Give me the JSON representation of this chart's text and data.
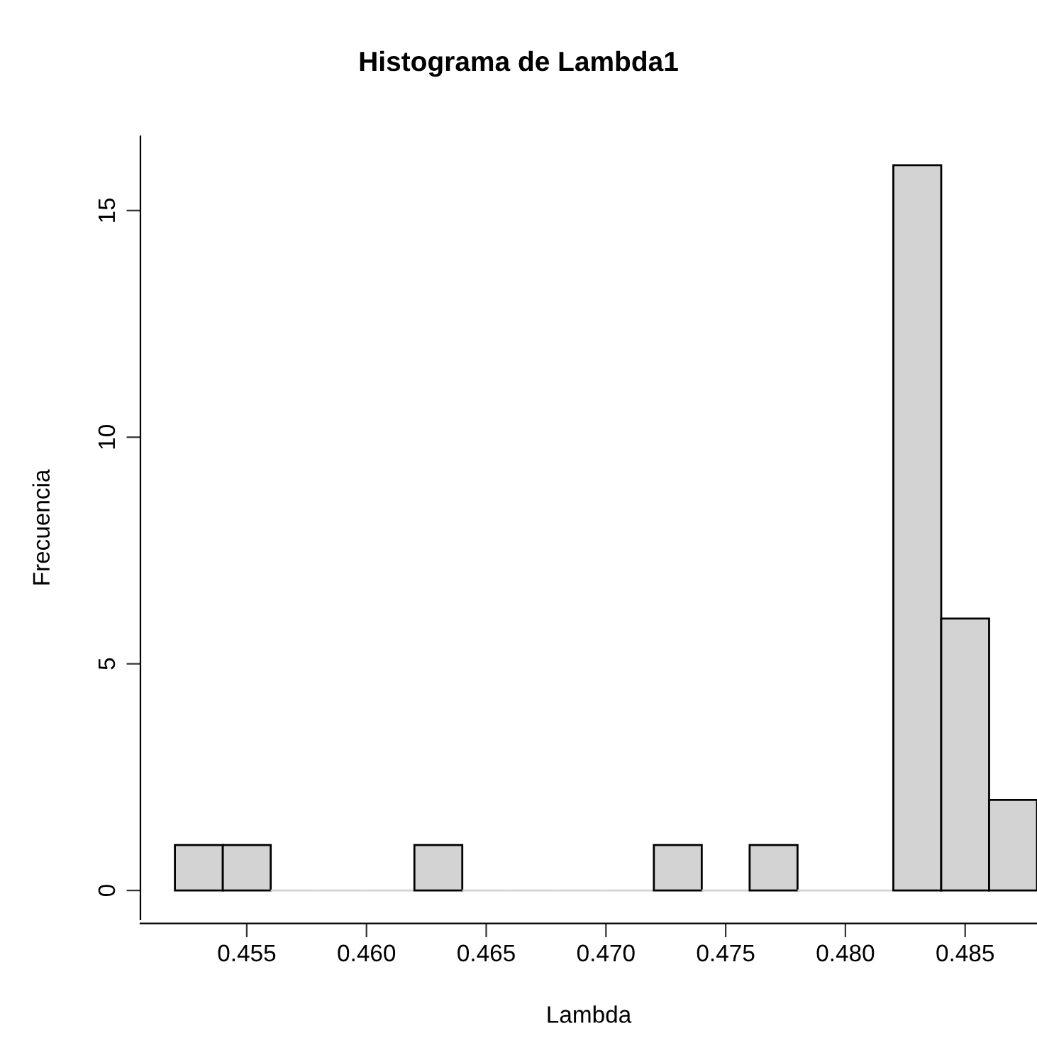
{
  "chart_data": {
    "type": "histogram",
    "title": "Histograma de Lambda1",
    "xlabel": "Lambda",
    "ylabel": "Frecuencia",
    "bins": [
      0.452,
      0.454,
      0.456,
      0.458,
      0.46,
      0.462,
      0.464,
      0.466,
      0.468,
      0.47,
      0.472,
      0.474,
      0.476,
      0.478,
      0.48,
      0.482,
      0.484,
      0.486,
      0.488
    ],
    "values": [
      1,
      1,
      0,
      0,
      0,
      1,
      0,
      0,
      0,
      0,
      1,
      0,
      1,
      0,
      0,
      16,
      6,
      2
    ],
    "color": "#d3d3d3",
    "xlim": [
      0.45056,
      0.488
    ],
    "xticks": [
      0.455,
      {
        "value": 0.46,
        "label": "0.460"
      },
      0.465,
      {
        "value": 0.47,
        "label": "0.470"
      },
      0.475,
      {
        "value": 0.48,
        "label": "0.480"
      },
      0.485
    ],
    "ylim": [
      -0.64,
      16.64
    ],
    "yticks": [
      0,
      5,
      10,
      15
    ],
    "grid": false
  }
}
